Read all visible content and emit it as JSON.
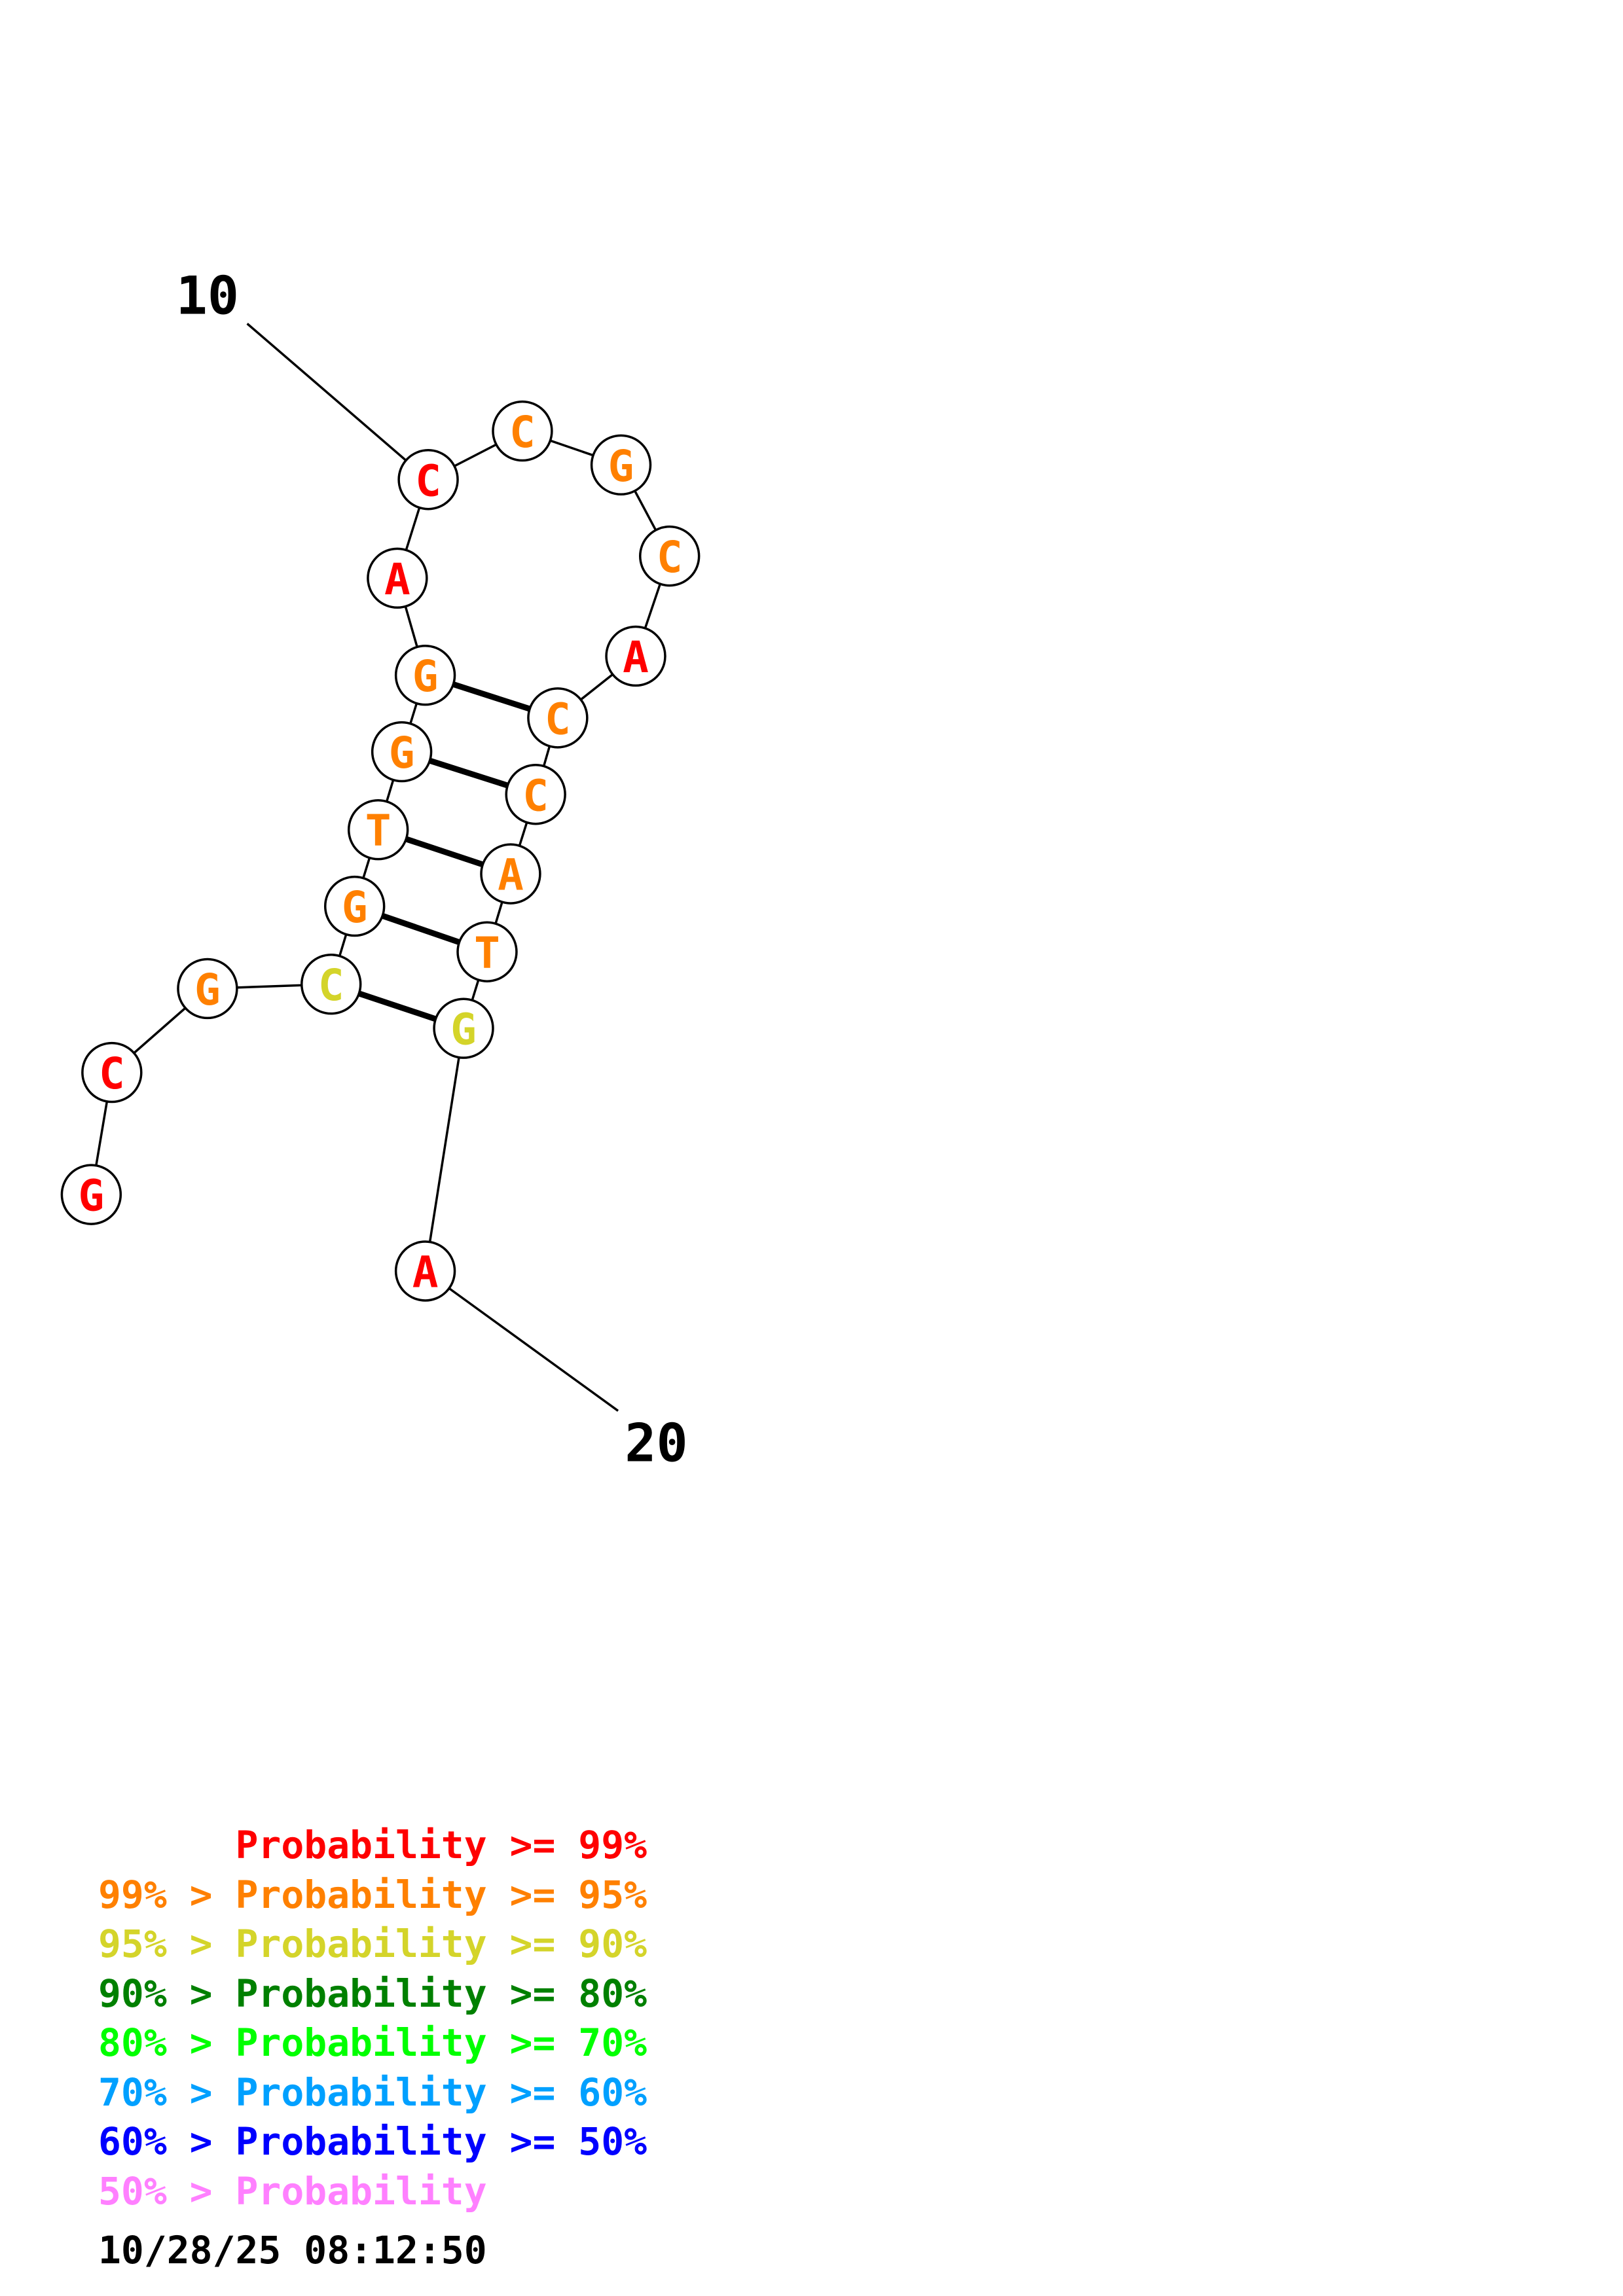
{
  "colors": {
    "p99": "#ff0000",
    "p95": "#ff8000",
    "p90": "#d4d42a",
    "p80": "#008000",
    "p70": "#00ff00",
    "p60": "#00a0ff",
    "p50": "#0000ff",
    "plow": "#ff80ff"
  },
  "position_labels": [
    "10",
    "20"
  ],
  "nucleotides": [
    {
      "base": "G",
      "prob": "p99"
    },
    {
      "base": "C",
      "prob": "p99"
    },
    {
      "base": "G",
      "prob": "p95"
    },
    {
      "base": "C",
      "prob": "p90"
    },
    {
      "base": "G",
      "prob": "p95"
    },
    {
      "base": "T",
      "prob": "p95"
    },
    {
      "base": "G",
      "prob": "p95"
    },
    {
      "base": "G",
      "prob": "p95"
    },
    {
      "base": "A",
      "prob": "p99"
    },
    {
      "base": "C",
      "prob": "p99"
    },
    {
      "base": "C",
      "prob": "p95"
    },
    {
      "base": "G",
      "prob": "p95"
    },
    {
      "base": "C",
      "prob": "p95"
    },
    {
      "base": "A",
      "prob": "p99"
    },
    {
      "base": "C",
      "prob": "p95"
    },
    {
      "base": "C",
      "prob": "p95"
    },
    {
      "base": "A",
      "prob": "p95"
    },
    {
      "base": "T",
      "prob": "p95"
    },
    {
      "base": "G",
      "prob": "p90"
    },
    {
      "base": "A",
      "prob": "p99"
    }
  ],
  "base_pairs": [
    [
      4,
      19
    ],
    [
      5,
      18
    ],
    [
      6,
      17
    ],
    [
      7,
      16
    ],
    [
      8,
      15
    ]
  ],
  "legend": [
    {
      "prefix": "    ",
      "text": "Probability >= 99%",
      "color": "p99"
    },
    {
      "prefix": "99% > ",
      "text": "Probability >= 95%",
      "color": "p95"
    },
    {
      "prefix": "95% > ",
      "text": "Probability >= 90%",
      "color": "p90"
    },
    {
      "prefix": "90% > ",
      "text": "Probability >= 80%",
      "color": "p80"
    },
    {
      "prefix": "80% > ",
      "text": "Probability >= 70%",
      "color": "p70"
    },
    {
      "prefix": "70% > ",
      "text": "Probability >= 60%",
      "color": "p60"
    },
    {
      "prefix": "60% > ",
      "text": "Probability >= 50%",
      "color": "p50"
    },
    {
      "prefix": "50% > ",
      "text": "Probability",
      "color": "plow"
    }
  ],
  "timestamp": "10/28/25 08:12:50"
}
